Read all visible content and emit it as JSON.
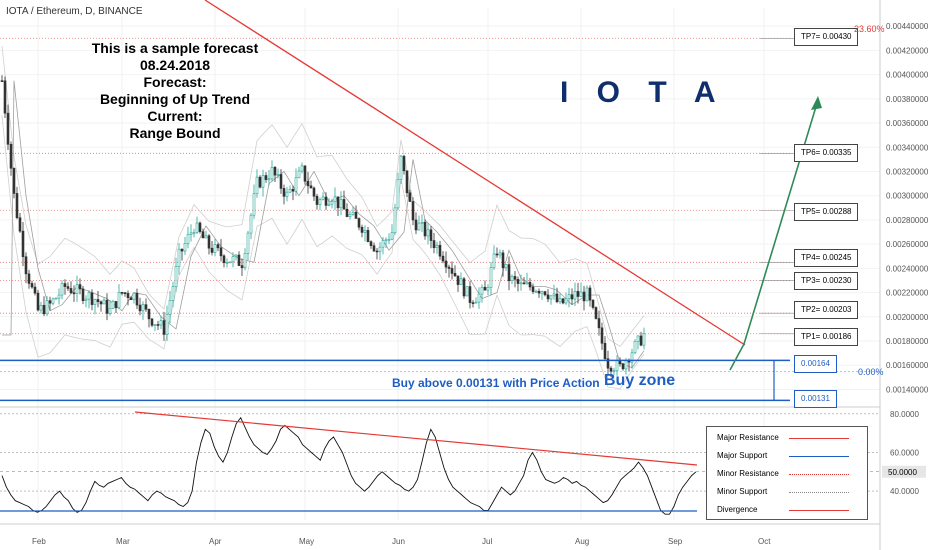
{
  "symbol_label": "IOTA / Ethereum, D, BINANCE",
  "note": {
    "line1": "This is a sample forecast",
    "line2": "08.24.2018",
    "line3": "Forecast:",
    "line4": "Beginning of Up Trend",
    "line5": "Current:",
    "line6": "Range Bound"
  },
  "headline": "I O T A",
  "buy_above_text": "Buy above 0.00131 with Price Action",
  "buy_zone_text": "Buy zone",
  "colors": {
    "up": "#26a69a",
    "down": "#333333",
    "resistance": "#e53935",
    "support": "#1e5ec4",
    "forecast": "#2e8b57",
    "osc": "#111111"
  },
  "chart_data": {
    "type": "candlestick",
    "price_axis": {
      "ticks": [
        "0.00440000",
        "0.00420000",
        "0.00400000",
        "0.00380000",
        "0.00360000",
        "0.00340000",
        "0.00320000",
        "0.00300000",
        "0.00280000",
        "0.00260000",
        "0.00240000",
        "0.00220000",
        "0.00200000",
        "0.00180000",
        "0.00160000",
        "0.00140000"
      ],
      "range": [
        0.00128,
        0.00455
      ]
    },
    "time_axis": {
      "ticks": [
        "Feb",
        "Mar",
        "Apr",
        "May",
        "Jun",
        "Jul",
        "Aug",
        "Sep",
        "Oct"
      ]
    },
    "ohlc_close_path": [
      [
        "2018-01-20",
        0.00395
      ],
      [
        "2018-01-24",
        0.003
      ],
      [
        "2018-01-28",
        0.0024
      ],
      [
        "2018-02-01",
        0.00205
      ],
      [
        "2018-02-05",
        0.0021
      ],
      [
        "2018-02-10",
        0.00225
      ],
      [
        "2018-02-15",
        0.0022
      ],
      [
        "2018-02-20",
        0.00215
      ],
      [
        "2018-02-25",
        0.00205
      ],
      [
        "2018-03-01",
        0.0022
      ],
      [
        "2018-03-05",
        0.00218
      ],
      [
        "2018-03-10",
        0.002
      ],
      [
        "2018-03-15",
        0.0019
      ],
      [
        "2018-03-20",
        0.0025
      ],
      [
        "2018-03-25",
        0.00275
      ],
      [
        "2018-03-30",
        0.00258
      ],
      [
        "2018-04-05",
        0.00248
      ],
      [
        "2018-04-10",
        0.00245
      ],
      [
        "2018-04-15",
        0.0031
      ],
      [
        "2018-04-20",
        0.0032
      ],
      [
        "2018-04-25",
        0.003
      ],
      [
        "2018-04-30",
        0.0032
      ],
      [
        "2018-05-05",
        0.00295
      ],
      [
        "2018-05-10",
        0.003
      ],
      [
        "2018-05-15",
        0.00285
      ],
      [
        "2018-05-20",
        0.00275
      ],
      [
        "2018-05-25",
        0.00255
      ],
      [
        "2018-05-30",
        0.0027
      ],
      [
        "2018-06-02",
        0.0033
      ],
      [
        "2018-06-06",
        0.0028
      ],
      [
        "2018-06-10",
        0.0027
      ],
      [
        "2018-06-15",
        0.00255
      ],
      [
        "2018-06-20",
        0.00235
      ],
      [
        "2018-06-25",
        0.00215
      ],
      [
        "2018-06-30",
        0.0022
      ],
      [
        "2018-07-04",
        0.00255
      ],
      [
        "2018-07-08",
        0.00232
      ],
      [
        "2018-07-12",
        0.00225
      ],
      [
        "2018-07-16",
        0.00225
      ],
      [
        "2018-07-20",
        0.00222
      ],
      [
        "2018-07-25",
        0.0021
      ],
      [
        "2018-07-30",
        0.00218
      ],
      [
        "2018-08-03",
        0.00218
      ],
      [
        "2018-08-06",
        0.00195
      ],
      [
        "2018-08-10",
        0.00162
      ],
      [
        "2018-08-14",
        0.00158
      ],
      [
        "2018-08-18",
        0.00172
      ],
      [
        "2018-08-22",
        0.00185
      ]
    ],
    "targets": [
      {
        "label": "TP1= 0.00186",
        "price": 0.00186
      },
      {
        "label": "TP2= 0.00203",
        "price": 0.00203
      },
      {
        "label": "TP3= 0.00230",
        "price": 0.0023
      },
      {
        "label": "TP4= 0.00245",
        "price": 0.00245
      },
      {
        "label": "TP5= 0.00288",
        "price": 0.00288
      },
      {
        "label": "TP6= 0.00335",
        "price": 0.00335
      },
      {
        "label": "TP7= 0.00430",
        "price": 0.0043
      }
    ],
    "support_levels": [
      {
        "label": "0.00164",
        "price": 0.00164
      },
      {
        "label": "0.00131",
        "price": 0.00131
      }
    ],
    "fib_labels": [
      {
        "label": "23.60%",
        "price": 0.0043
      },
      {
        "label": "0.00%",
        "price": 0.00155
      }
    ],
    "rsi": {
      "axis_ticks": [
        "80.0000",
        "60.0000",
        "40.0000"
      ],
      "current_value": "50.0000",
      "range": [
        25,
        82
      ],
      "values": [
        48,
        42,
        38,
        35,
        34,
        33,
        32,
        30,
        29,
        30,
        32,
        35,
        38,
        40,
        37,
        35,
        31,
        29,
        30,
        34,
        40,
        45,
        43,
        42,
        44,
        45,
        46,
        47,
        44,
        42,
        41,
        39,
        37,
        35,
        38,
        40,
        39,
        37,
        36,
        35,
        33,
        32,
        34,
        40,
        55,
        65,
        72,
        70,
        63,
        58,
        55,
        60,
        68,
        75,
        78,
        73,
        68,
        64,
        62,
        60,
        59,
        62,
        66,
        72,
        74,
        72,
        70,
        68,
        64,
        62,
        60,
        58,
        56,
        62,
        66,
        68,
        64,
        60,
        54,
        48,
        44,
        42,
        40,
        42,
        45,
        48,
        50,
        48,
        46,
        44,
        43,
        41,
        40,
        42,
        46,
        55,
        65,
        72,
        68,
        60,
        52,
        46,
        42,
        40,
        38,
        36,
        34,
        33,
        32,
        30,
        30,
        34,
        38,
        42,
        40,
        38,
        40,
        44,
        48,
        56,
        60,
        56,
        50,
        46,
        45,
        44,
        45,
        47,
        46,
        44,
        45,
        43,
        42,
        40,
        38,
        36,
        34,
        35,
        38,
        42,
        46,
        48,
        50,
        52,
        55,
        52,
        48,
        42,
        36,
        30,
        28,
        28,
        32,
        38,
        42,
        45,
        48,
        50
      ]
    },
    "legend": [
      {
        "label": "Major Resistance",
        "color": "#e53935",
        "style": "solid"
      },
      {
        "label": "Major Support",
        "color": "#1e5ec4",
        "style": "solid"
      },
      {
        "label": "Minor Resistance",
        "color": "#e53935",
        "style": "dotted"
      },
      {
        "label": "Minor Support",
        "color": "#888888",
        "style": "dotted"
      },
      {
        "label": "Divergence",
        "color": "#e53935",
        "style": "solid"
      }
    ]
  }
}
